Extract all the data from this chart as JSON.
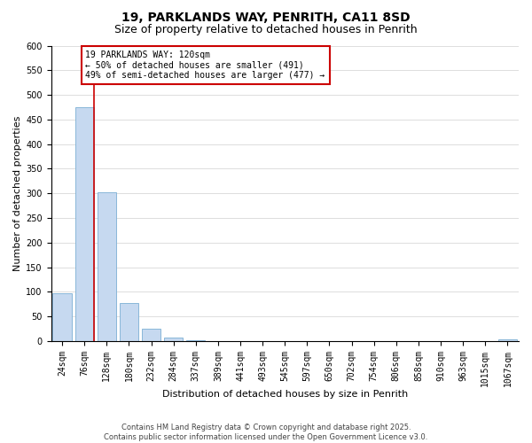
{
  "title": "19, PARKLANDS WAY, PENRITH, CA11 8SD",
  "subtitle": "Size of property relative to detached houses in Penrith",
  "xlabel": "Distribution of detached houses by size in Penrith",
  "ylabel": "Number of detached properties",
  "categories": [
    "24sqm",
    "76sqm",
    "128sqm",
    "180sqm",
    "232sqm",
    "284sqm",
    "337sqm",
    "389sqm",
    "441sqm",
    "493sqm",
    "545sqm",
    "597sqm",
    "650sqm",
    "702sqm",
    "754sqm",
    "806sqm",
    "858sqm",
    "910sqm",
    "963sqm",
    "1015sqm",
    "1067sqm"
  ],
  "values": [
    97,
    475,
    302,
    78,
    25,
    7,
    2,
    0,
    0,
    0,
    0,
    0,
    0,
    0,
    0,
    0,
    0,
    0,
    0,
    0,
    3
  ],
  "bar_color": "#c6d9f0",
  "bar_edge_color": "#7bafd4",
  "vline_color": "#cc0000",
  "ylim": [
    0,
    600
  ],
  "yticks": [
    0,
    50,
    100,
    150,
    200,
    250,
    300,
    350,
    400,
    450,
    500,
    550,
    600
  ],
  "annotation_text": "19 PARKLANDS WAY: 120sqm\n← 50% of detached houses are smaller (491)\n49% of semi-detached houses are larger (477) →",
  "annotation_box_color": "#ffffff",
  "annotation_box_edgecolor": "#cc0000",
  "footer_line1": "Contains HM Land Registry data © Crown copyright and database right 2025.",
  "footer_line2": "Contains public sector information licensed under the Open Government Licence v3.0.",
  "bg_color": "#ffffff",
  "grid_color": "#d0d0d0",
  "title_fontsize": 10,
  "subtitle_fontsize": 9,
  "axis_label_fontsize": 8,
  "tick_fontsize": 7,
  "footer_fontsize": 6,
  "annot_fontsize": 7
}
